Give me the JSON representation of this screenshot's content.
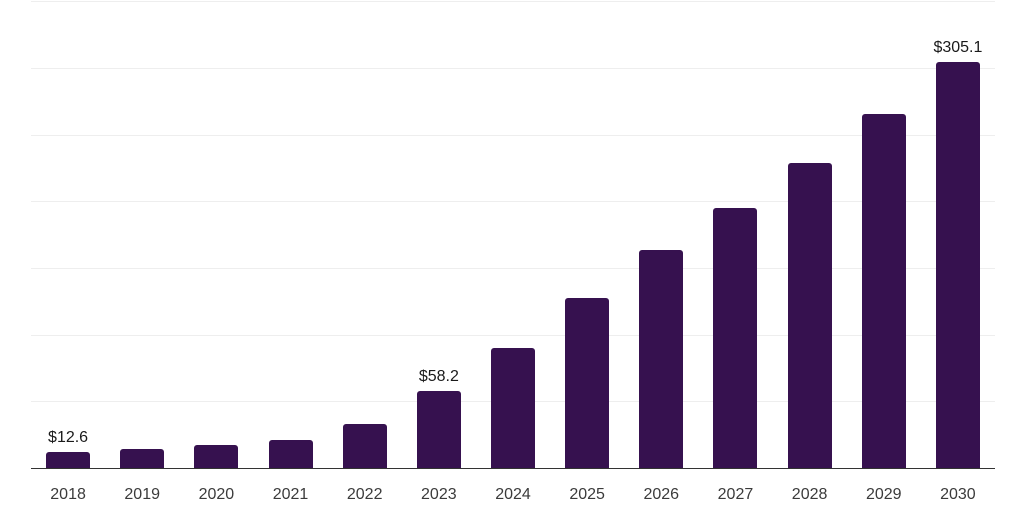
{
  "chart_data": {
    "type": "bar",
    "title": "",
    "xlabel": "",
    "ylabel": "",
    "categories": [
      "2018",
      "2019",
      "2020",
      "2021",
      "2022",
      "2023",
      "2024",
      "2025",
      "2026",
      "2027",
      "2028",
      "2029",
      "2030"
    ],
    "values": [
      12.6,
      14.9,
      17.8,
      21.2,
      33.5,
      58.2,
      90.2,
      127.8,
      163.8,
      195.5,
      229.2,
      266.0,
      305.1
    ],
    "labeled_points": [
      {
        "category": "2018",
        "label": "$12.6"
      },
      {
        "category": "2023",
        "label": "$58.2"
      },
      {
        "category": "2030",
        "label": "$305.1"
      }
    ],
    "ylim": [
      0,
      350
    ],
    "gridline_interval": 50,
    "grid": "horizontal",
    "y_tick_labels_visible": false,
    "legend": "none",
    "colors": {
      "bar": "#36114F",
      "axis_line": "#333333",
      "gridline": "#eeeeee",
      "value_label": "#1a1a1a",
      "tick_label": "#3b3b3b",
      "background": "#ffffff"
    }
  }
}
